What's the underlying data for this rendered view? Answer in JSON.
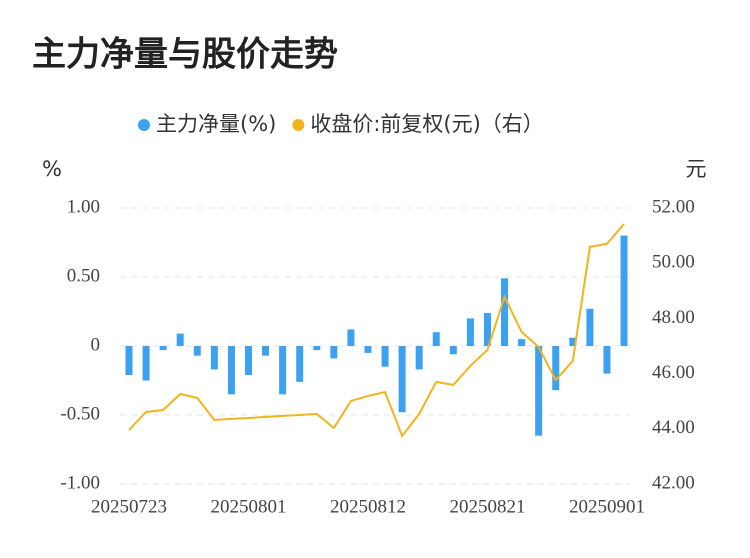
{
  "chart_data": {
    "type": "bar_line",
    "title": "主力净量与股价走势",
    "y_axis_label": "%",
    "y2_axis_label": "元",
    "categories": [
      "20250723",
      null,
      null,
      null,
      null,
      null,
      null,
      "20250801",
      null,
      null,
      null,
      null,
      null,
      null,
      "20250812",
      null,
      null,
      null,
      null,
      null,
      null,
      "20250821",
      null,
      null,
      null,
      null,
      null,
      null,
      "20250901",
      null
    ],
    "series": [
      {
        "name": "主力净量(%)",
        "type": "bar",
        "color": "#3ba1f0",
        "values": [
          -0.21,
          -0.25,
          -0.03,
          0.09,
          -0.07,
          -0.17,
          -0.35,
          -0.21,
          -0.07,
          -0.35,
          -0.26,
          -0.03,
          -0.09,
          0.12,
          -0.05,
          -0.15,
          -0.48,
          -0.17,
          0.1,
          -0.06,
          0.2,
          0.24,
          0.49,
          0.05,
          -0.65,
          -0.32,
          0.06,
          0.27,
          -0.2,
          0.8
        ]
      },
      {
        "name": "收盘价:前复权(元)（右）",
        "type": "line",
        "axis": "y2",
        "color": "#f2b41c",
        "values": [
          43.96,
          44.61,
          44.68,
          45.26,
          45.12,
          44.32,
          44.36,
          44.39,
          44.43,
          44.47,
          44.5,
          44.54,
          44.03,
          45.01,
          45.19,
          45.33,
          43.74,
          44.54,
          45.7,
          45.59,
          46.28,
          46.86,
          48.78,
          47.51,
          46.96,
          45.77,
          46.46,
          50.59,
          50.7,
          51.42
        ]
      }
    ],
    "ylim": [
      -1,
      1
    ],
    "yticks": [
      {
        "value": 1,
        "label": "1.00"
      },
      {
        "value": 0.5,
        "label": "0.50"
      },
      0,
      {
        "value": -0.5,
        "label": "-0.50"
      },
      {
        "value": -1,
        "label": "-1.00"
      }
    ],
    "y2lim": [
      42,
      52
    ],
    "y2ticks": [
      {
        "value": 52,
        "label": "52.00"
      },
      {
        "value": 50,
        "label": "50.00"
      },
      {
        "value": 48,
        "label": "48.00"
      },
      {
        "value": 46,
        "label": "46.00"
      },
      {
        "value": 44,
        "label": "44.00"
      },
      {
        "value": 42,
        "label": "42.00"
      }
    ],
    "grid": true
  }
}
